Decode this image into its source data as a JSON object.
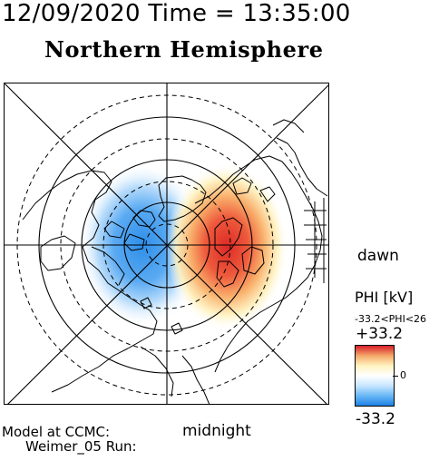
{
  "header": {
    "date_time": "12/09/2020 Time = 13:35:00",
    "hemisphere": "Northern Hemisphere"
  },
  "map": {
    "bottom_label": "midnight",
    "right_label": "dawn",
    "positive_lobe_color": "#e23a2a",
    "negative_lobe_color": "#2e8ee8",
    "lat_circles_solid": 3,
    "lat_circles_dashed": 3,
    "radial_meridians": 8
  },
  "colorbar": {
    "title": "PHI [kV]",
    "range_text": "-33.2<PHI<26",
    "max_label": "+33.2",
    "zero_label": "0",
    "min_label": "-33.2",
    "colors": [
      "#d81e2a",
      "#f4a868",
      "#fff3c0",
      "#ffffff",
      "#c8e6ff",
      "#6ab8f5",
      "#1e82e6"
    ]
  },
  "footer": {
    "model_line": "Model at CCMC:",
    "run_line": "Weimer_05 Run:"
  }
}
